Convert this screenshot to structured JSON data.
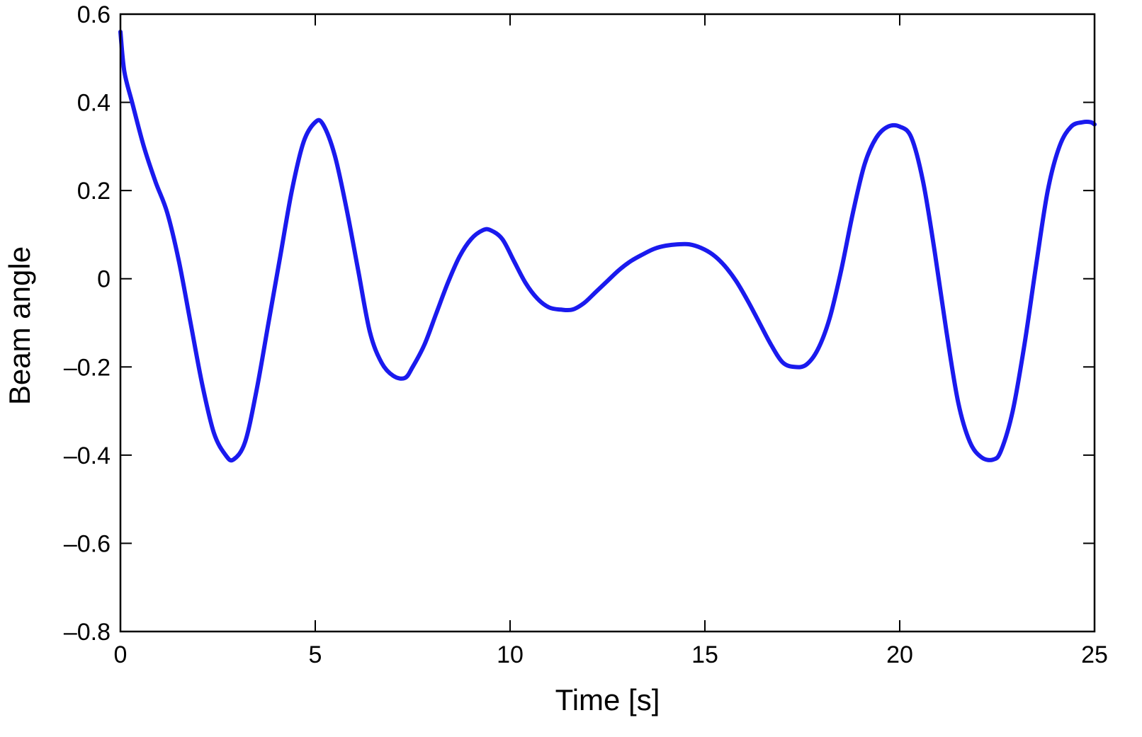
{
  "chart_data": {
    "type": "line",
    "title": "",
    "xlabel": "Time [s]",
    "ylabel": "Beam angle",
    "xlim": [
      0,
      25
    ],
    "ylim": [
      -0.8,
      0.6
    ],
    "xticks": [
      0,
      5,
      10,
      15,
      20,
      25
    ],
    "xtick_labels": [
      "0",
      "5",
      "10",
      "15",
      "20",
      "25"
    ],
    "yticks": [
      0.6,
      0.4,
      0.2,
      0,
      -0.2,
      -0.4,
      -0.6,
      -0.8
    ],
    "ytick_labels": [
      "0.6",
      "0.4",
      "0.2",
      "0",
      "–0.2",
      "–0.4",
      "–0.6",
      "–0.8"
    ],
    "grid": false,
    "series_color": "#1a1aee",
    "series": [
      {
        "x": [
          0,
          0.1,
          0.3,
          0.6,
          0.9,
          1.2,
          1.5,
          1.8,
          2.1,
          2.4,
          2.7,
          2.9,
          3.2,
          3.5,
          3.8,
          4.1,
          4.4,
          4.7,
          5.0,
          5.2,
          5.5,
          5.8,
          6.1,
          6.4,
          6.7,
          7.0,
          7.3,
          7.5,
          7.8,
          8.1,
          8.4,
          8.7,
          9.0,
          9.3,
          9.5,
          9.8,
          10.1,
          10.4,
          10.7,
          11.0,
          11.3,
          11.6,
          11.9,
          12.2,
          12.5,
          12.8,
          13.1,
          13.4,
          13.7,
          14.0,
          14.3,
          14.6,
          14.9,
          15.2,
          15.5,
          15.8,
          16.1,
          16.4,
          16.7,
          17.0,
          17.3,
          17.6,
          17.9,
          18.2,
          18.5,
          18.8,
          19.1,
          19.4,
          19.7,
          20.0,
          20.3,
          20.6,
          20.9,
          21.2,
          21.5,
          21.8,
          22.1,
          22.4,
          22.6,
          22.9,
          23.2,
          23.5,
          23.8,
          24.1,
          24.4,
          24.7,
          24.9,
          25.0
        ],
        "y": [
          0.56,
          0.47,
          0.4,
          0.3,
          0.22,
          0.15,
          0.04,
          -0.1,
          -0.24,
          -0.35,
          -0.4,
          -0.41,
          -0.37,
          -0.25,
          -0.1,
          0.05,
          0.2,
          0.31,
          0.355,
          0.35,
          0.28,
          0.16,
          0.02,
          -0.12,
          -0.19,
          -0.22,
          -0.225,
          -0.2,
          -0.15,
          -0.08,
          -0.01,
          0.05,
          0.09,
          0.11,
          0.11,
          0.09,
          0.04,
          -0.01,
          -0.045,
          -0.065,
          -0.07,
          -0.07,
          -0.055,
          -0.03,
          -0.005,
          0.02,
          0.04,
          0.055,
          0.068,
          0.075,
          0.078,
          0.078,
          0.07,
          0.055,
          0.03,
          -0.005,
          -0.05,
          -0.1,
          -0.15,
          -0.19,
          -0.2,
          -0.195,
          -0.16,
          -0.09,
          0.02,
          0.15,
          0.26,
          0.32,
          0.345,
          0.345,
          0.32,
          0.22,
          0.06,
          -0.12,
          -0.28,
          -0.37,
          -0.405,
          -0.41,
          -0.39,
          -0.3,
          -0.15,
          0.03,
          0.2,
          0.3,
          0.345,
          0.355,
          0.355,
          0.35
        ]
      }
    ]
  }
}
